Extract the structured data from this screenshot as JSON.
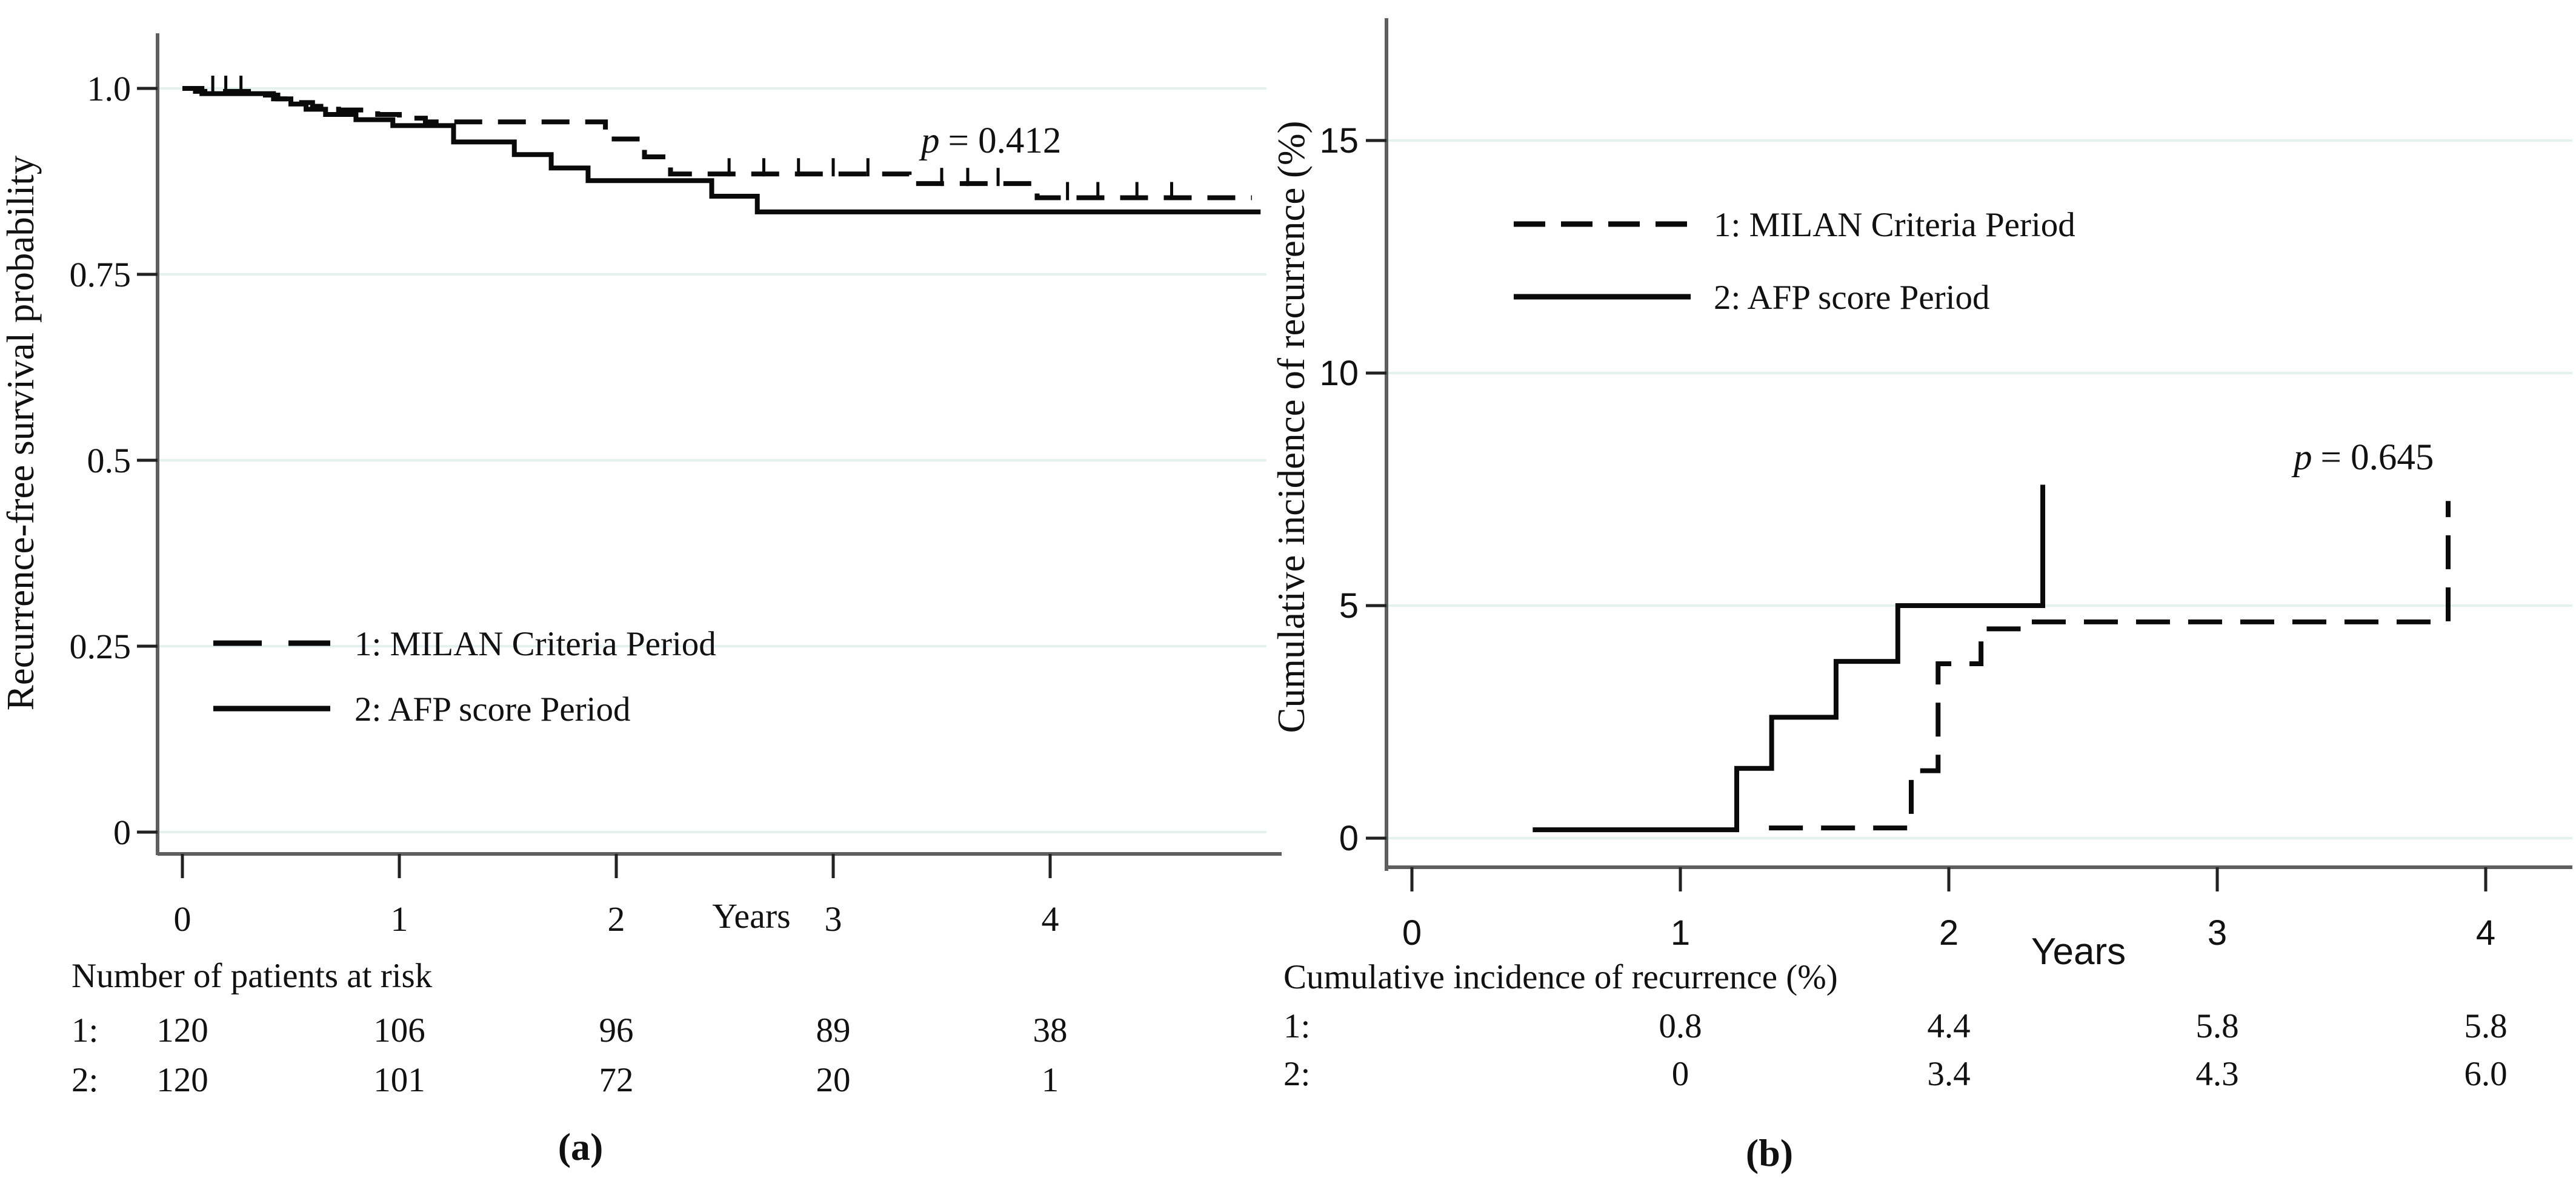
{
  "figure": {
    "background": "#ffffff",
    "text_color": "#111111",
    "grid_color": "#e4f1ef",
    "axis_color": "#5f5f5f",
    "curve_color": "#0a0a0a"
  },
  "chart_data": [
    {
      "id": "a",
      "type": "line",
      "subtype": "kaplan-meier-step",
      "title": "",
      "xlabel": "Years",
      "ylabel": "Recurrence-free survival probability",
      "annotation": {
        "prefix": "p",
        "text": "= 0.412"
      },
      "xticks": [
        "0",
        "1",
        "2",
        "3",
        "4"
      ],
      "xtick_values": [
        0,
        1,
        2,
        3,
        4
      ],
      "yticks": [
        "1.0",
        "0.75",
        "0.5",
        "0.25",
        "0"
      ],
      "ytick_values": [
        1.0,
        0.75,
        0.5,
        0.25,
        0
      ],
      "xlim": [
        -0.12,
        5.05
      ],
      "ylim": [
        0,
        1.05
      ],
      "grid": true,
      "legend_position": "inside-lower-left",
      "legend": [
        {
          "label": "1: MILAN Criteria Period",
          "style": "dashed"
        },
        {
          "label": "2: AFP score Period",
          "style": "solid"
        }
      ],
      "series": [
        {
          "name": "1: MILAN Criteria Period",
          "style": "dashed",
          "points": [
            [
              0,
              1.0
            ],
            [
              0.06,
              0.996
            ],
            [
              0.35,
              0.991
            ],
            [
              0.44,
              0.986
            ],
            [
              0.52,
              0.981
            ],
            [
              0.6,
              0.976
            ],
            [
              0.72,
              0.971
            ],
            [
              0.9,
              0.965
            ],
            [
              1.0,
              0.96
            ],
            [
              1.12,
              0.955
            ],
            [
              1.95,
              0.932
            ],
            [
              2.13,
              0.908
            ],
            [
              2.25,
              0.885
            ],
            [
              3.35,
              0.872
            ],
            [
              3.94,
              0.853
            ]
          ],
          "end_x": 4.93,
          "censor_x": [
            0.14,
            0.2,
            0.27,
            2.52,
            2.68,
            2.84,
            3.0,
            3.16,
            3.5,
            3.62,
            3.76,
            4.08,
            4.22,
            4.4,
            4.56
          ]
        },
        {
          "name": "2: AFP score Period",
          "style": "solid",
          "points": [
            [
              0,
              1.0
            ],
            [
              0.09,
              0.993
            ],
            [
              0.42,
              0.986
            ],
            [
              0.5,
              0.979
            ],
            [
              0.57,
              0.972
            ],
            [
              0.66,
              0.965
            ],
            [
              0.8,
              0.958
            ],
            [
              0.97,
              0.95
            ],
            [
              1.25,
              0.928
            ],
            [
              1.53,
              0.911
            ],
            [
              1.7,
              0.893
            ],
            [
              1.87,
              0.876
            ],
            [
              2.44,
              0.855
            ],
            [
              2.65,
              0.834
            ]
          ],
          "end_x": 4.97
        }
      ],
      "table": {
        "title": "Number of patients at risk",
        "rows": [
          {
            "label": "1:",
            "values": [
              "120",
              "106",
              "96",
              "89",
              "38"
            ]
          },
          {
            "label": "2:",
            "values": [
              "120",
              "101",
              "72",
              "20",
              "1"
            ]
          }
        ]
      },
      "caption": "(a)"
    },
    {
      "id": "b",
      "type": "line",
      "subtype": "cumulative-incidence-step",
      "title": "",
      "xlabel": "Years",
      "ylabel": "Cumulative incidence of recurrence (%)",
      "annotation": {
        "prefix": "p",
        "text": "= 0.645"
      },
      "xticks": [
        "0",
        "1",
        "2",
        "3",
        "4"
      ],
      "xtick_values": [
        0,
        1,
        2,
        3,
        4
      ],
      "yticks": [
        "15",
        "10",
        "5",
        "0"
      ],
      "ytick_values": [
        15,
        10,
        5,
        0
      ],
      "xlim": [
        -0.1,
        4.35
      ],
      "ylim": [
        0,
        17.5
      ],
      "grid": true,
      "legend_position": "inside-upper-left",
      "legend": [
        {
          "label": "1: MILAN Criteria Period",
          "style": "dashed"
        },
        {
          "label": "2: AFP score Period",
          "style": "solid"
        }
      ],
      "series": [
        {
          "name": "1: MILAN Criteria Period",
          "style": "dashed",
          "points": [
            [
              1.33,
              0.22
            ],
            [
              1.86,
              1.45
            ],
            [
              1.96,
              3.75
            ],
            [
              2.12,
              4.5
            ],
            [
              2.27,
              4.65
            ],
            [
              3.86,
              7.25
            ]
          ]
        },
        {
          "name": "2: AFP score Period",
          "style": "solid",
          "points": [
            [
              0.45,
              0.18
            ],
            [
              1.21,
              1.5
            ],
            [
              1.34,
              2.6
            ],
            [
              1.58,
              3.8
            ],
            [
              1.81,
              5.0
            ],
            [
              2.35,
              7.6
            ]
          ]
        }
      ],
      "table": {
        "title": "Cumulative incidence of recurrence (%)",
        "rows": [
          {
            "label": "1:",
            "values": [
              "0.8",
              "4.4",
              "5.8",
              "5.8"
            ]
          },
          {
            "label": "2:",
            "values": [
              "0",
              "3.4",
              "4.3",
              "6.0"
            ]
          }
        ]
      },
      "caption": "(b)"
    }
  ]
}
